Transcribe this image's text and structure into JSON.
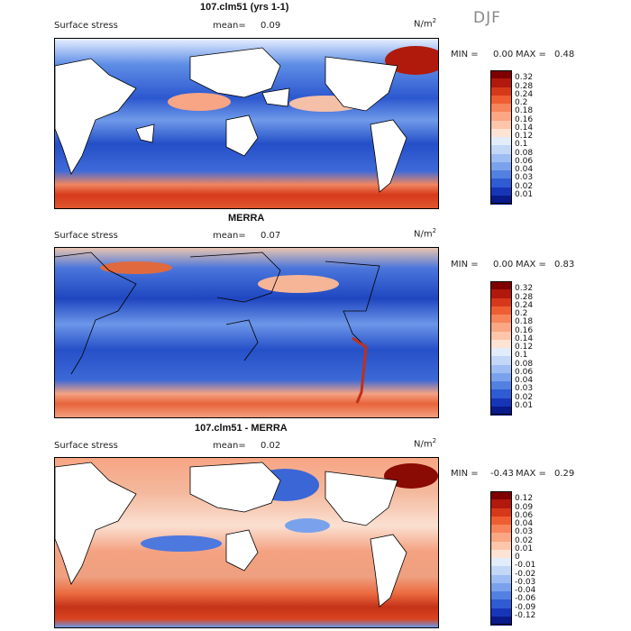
{
  "season": "DJF",
  "units": "N/m",
  "units_sup": "2",
  "panels": [
    {
      "title": "107.clm51 (yrs 1-1)",
      "variable": "Surface stress",
      "mean_label": "mean=",
      "mean_value": "0.09",
      "min_label": "MIN =",
      "min_value": "0.00",
      "max_label": "MAX =",
      "max_value": "0.48"
    },
    {
      "title": "MERRA",
      "variable": "Surface stress",
      "mean_label": "mean=",
      "mean_value": "0.07",
      "min_label": "MIN =",
      "min_value": "0.00",
      "max_label": "MAX =",
      "max_value": "0.83"
    },
    {
      "title": "107.clm51 - MERRA",
      "variable": "Surface stress",
      "mean_label": "mean=",
      "mean_value": "0.02",
      "min_label": "MIN =",
      "min_value": "-0.43",
      "max_label": "MAX =",
      "max_value": "0.29"
    }
  ],
  "colorbars": [
    {
      "levels": [
        "0.32",
        "0.28",
        "0.24",
        "0.2",
        "0.18",
        "0.16",
        "0.14",
        "0.12",
        "0.1",
        "0.08",
        "0.06",
        "0.04",
        "0.03",
        "0.02",
        "0.01"
      ],
      "colors": [
        "#7f0000",
        "#b0190c",
        "#d6381a",
        "#ef5e33",
        "#f7845a",
        "#fba784",
        "#fdc6ab",
        "#fde3d3",
        "#e2ecfb",
        "#c3d7f7",
        "#9ebdf2",
        "#7aa2ec",
        "#5281e2",
        "#2f5bd3",
        "#1736b7",
        "#0a1a8a"
      ]
    },
    {
      "levels": [
        "0.32",
        "0.28",
        "0.24",
        "0.2",
        "0.18",
        "0.16",
        "0.14",
        "0.12",
        "0.1",
        "0.08",
        "0.06",
        "0.04",
        "0.03",
        "0.02",
        "0.01"
      ],
      "colors": [
        "#7f0000",
        "#b0190c",
        "#d6381a",
        "#ef5e33",
        "#f7845a",
        "#fba784",
        "#fdc6ab",
        "#fde3d3",
        "#e2ecfb",
        "#c3d7f7",
        "#9ebdf2",
        "#7aa2ec",
        "#5281e2",
        "#2f5bd3",
        "#1736b7",
        "#0a1a8a"
      ]
    },
    {
      "levels": [
        "0.12",
        "0.09",
        "0.06",
        "0.04",
        "0.03",
        "0.02",
        "0.01",
        "0",
        "-0.01",
        "-0.02",
        "-0.03",
        "-0.04",
        "-0.06",
        "-0.09",
        "-0.12"
      ],
      "colors": [
        "#7f0000",
        "#b0190c",
        "#d6381a",
        "#ef5e33",
        "#f7845a",
        "#fba784",
        "#fdc6ab",
        "#fde3d3",
        "#e2ecfb",
        "#c3d7f7",
        "#9ebdf2",
        "#7aa2ec",
        "#5281e2",
        "#2f5bd3",
        "#1736b7",
        "#0a1a8a"
      ]
    }
  ],
  "chart_data": [
    {
      "type": "heatmap",
      "title": "107.clm51 (yrs 1-1)",
      "variable": "Surface stress",
      "units": "N/m2",
      "season": "DJF",
      "mean": 0.09,
      "min": 0.0,
      "max": 0.48,
      "levels": [
        0.01,
        0.02,
        0.03,
        0.04,
        0.06,
        0.08,
        0.1,
        0.12,
        0.14,
        0.16,
        0.18,
        0.2,
        0.24,
        0.28,
        0.32
      ]
    },
    {
      "type": "heatmap",
      "title": "MERRA",
      "variable": "Surface stress",
      "units": "N/m2",
      "season": "DJF",
      "mean": 0.07,
      "min": 0.0,
      "max": 0.83,
      "levels": [
        0.01,
        0.02,
        0.03,
        0.04,
        0.06,
        0.08,
        0.1,
        0.12,
        0.14,
        0.16,
        0.18,
        0.2,
        0.24,
        0.28,
        0.32
      ]
    },
    {
      "type": "heatmap",
      "title": "107.clm51 - MERRA",
      "variable": "Surface stress",
      "units": "N/m2",
      "season": "DJF",
      "mean": 0.02,
      "min": -0.43,
      "max": 0.29,
      "levels": [
        -0.12,
        -0.09,
        -0.06,
        -0.04,
        -0.03,
        -0.02,
        -0.01,
        0,
        0.01,
        0.02,
        0.03,
        0.04,
        0.06,
        0.09,
        0.12
      ]
    }
  ]
}
